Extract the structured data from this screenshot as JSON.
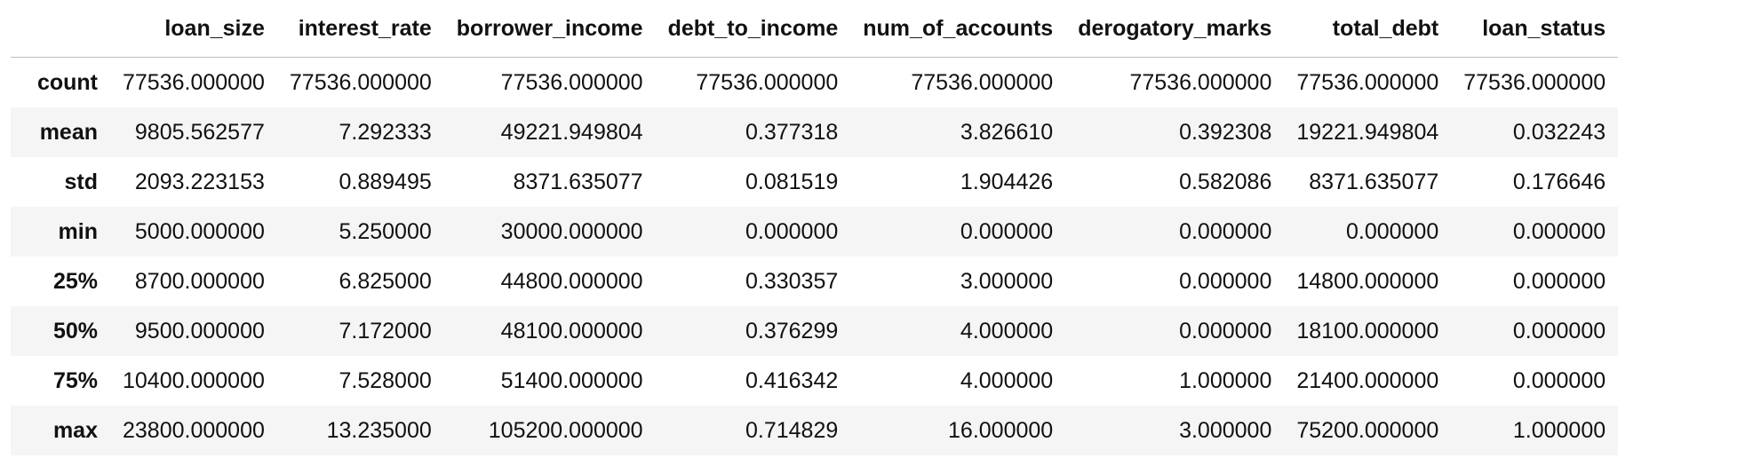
{
  "table": {
    "columns": [
      "",
      "loan_size",
      "interest_rate",
      "borrower_income",
      "debt_to_income",
      "num_of_accounts",
      "derogatory_marks",
      "total_debt",
      "loan_status"
    ],
    "rows": [
      {
        "label": "count",
        "values": [
          "77536.000000",
          "77536.000000",
          "77536.000000",
          "77536.000000",
          "77536.000000",
          "77536.000000",
          "77536.000000",
          "77536.000000"
        ]
      },
      {
        "label": "mean",
        "values": [
          "9805.562577",
          "7.292333",
          "49221.949804",
          "0.377318",
          "3.826610",
          "0.392308",
          "19221.949804",
          "0.032243"
        ]
      },
      {
        "label": "std",
        "values": [
          "2093.223153",
          "0.889495",
          "8371.635077",
          "0.081519",
          "1.904426",
          "0.582086",
          "8371.635077",
          "0.176646"
        ]
      },
      {
        "label": "min",
        "values": [
          "5000.000000",
          "5.250000",
          "30000.000000",
          "0.000000",
          "0.000000",
          "0.000000",
          "0.000000",
          "0.000000"
        ]
      },
      {
        "label": "25%",
        "values": [
          "8700.000000",
          "6.825000",
          "44800.000000",
          "0.330357",
          "3.000000",
          "0.000000",
          "14800.000000",
          "0.000000"
        ]
      },
      {
        "label": "50%",
        "values": [
          "9500.000000",
          "7.172000",
          "48100.000000",
          "0.376299",
          "4.000000",
          "0.000000",
          "18100.000000",
          "0.000000"
        ]
      },
      {
        "label": "75%",
        "values": [
          "10400.000000",
          "7.528000",
          "51400.000000",
          "0.416342",
          "4.000000",
          "1.000000",
          "21400.000000",
          "0.000000"
        ]
      },
      {
        "label": "max",
        "values": [
          "23800.000000",
          "13.235000",
          "105200.000000",
          "0.714829",
          "16.000000",
          "3.000000",
          "75200.000000",
          "1.000000"
        ]
      }
    ]
  }
}
